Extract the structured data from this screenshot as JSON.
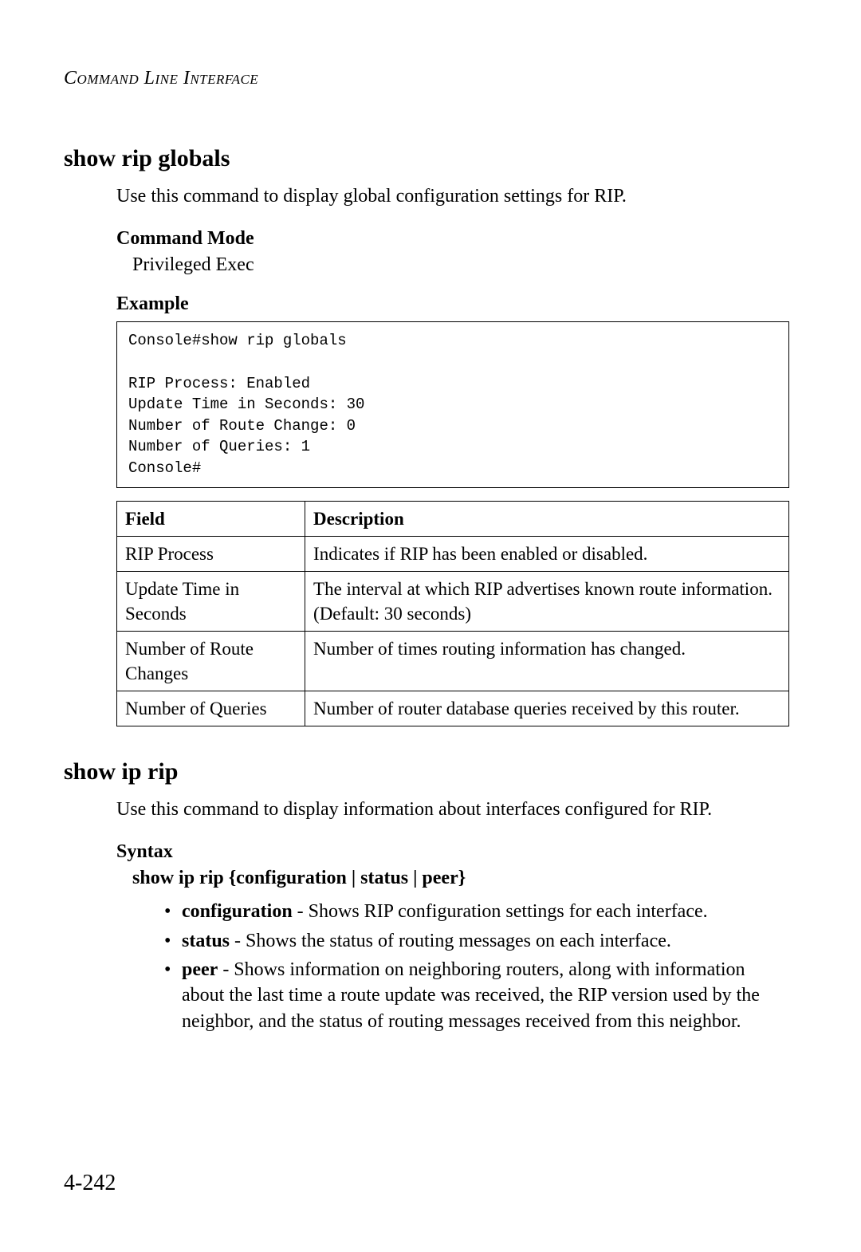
{
  "header": {
    "running_title": "Command Line Interface"
  },
  "section1": {
    "heading": "show rip globals",
    "description": "Use this command to display global configuration settings for RIP.",
    "command_mode_label": "Command Mode",
    "command_mode_value": "Privileged Exec",
    "example_label": "Example",
    "code": "Console#show rip globals\n\nRIP Process: Enabled\nUpdate Time in Seconds: 30\nNumber of Route Change: 0\nNumber of Queries: 1\nConsole#",
    "table": {
      "columns": [
        "Field",
        "Description"
      ],
      "rows": [
        [
          "RIP Process",
          "Indicates if RIP has been enabled or disabled."
        ],
        [
          "Update Time in Seconds",
          "The interval at which RIP advertises known route information. (Default: 30 seconds)"
        ],
        [
          "Number of Route Changes",
          "Number of times routing information has changed."
        ],
        [
          "Number of Queries",
          "Number of router database queries received by this router."
        ]
      ]
    }
  },
  "section2": {
    "heading": "show ip rip",
    "description": "Use this command to display information about interfaces configured for RIP.",
    "syntax_label": "Syntax",
    "syntax_line": "show ip rip {configuration | status | peer}",
    "options": [
      {
        "name": "configuration",
        "text": " - Shows RIP configuration settings for each interface."
      },
      {
        "name": "status",
        "text": " - Shows the status of routing messages on each interface."
      },
      {
        "name": "peer",
        "text": " - Shows information on neighboring routers, along with information about the last time a route update was received, the RIP version used by the neighbor, and the status of routing messages received from this neighbor."
      }
    ]
  },
  "footer": {
    "page_number": "4-242"
  }
}
